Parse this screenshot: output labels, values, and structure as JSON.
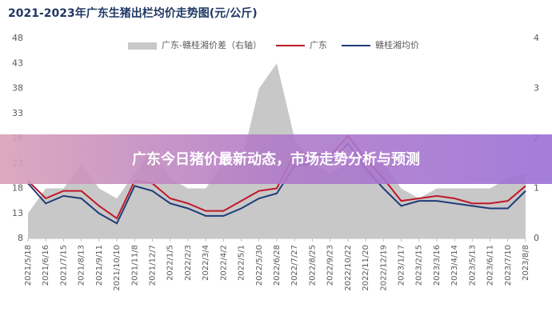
{
  "chart_data": {
    "type": "line",
    "title": "2021-2023年广东生猪出栏均价走势图(元/公斤)",
    "categories": [
      "2021/5/18",
      "2021/6/16",
      "2021/7/15",
      "2021/8/13",
      "2021/9/11",
      "2021/10/10",
      "2021/11/8",
      "2021/12/7",
      "2022/1/5",
      "2022/2/3",
      "2022/3/4",
      "2022/4/2",
      "2022/5/1",
      "2022/5/30",
      "2022/6/28",
      "2022/7/27",
      "2022/8/25",
      "2022/9/23",
      "2022/10/22",
      "2022/11/20",
      "2022/12/19",
      "2023/1/17",
      "2023/2/15",
      "2023/3/16",
      "2023/4/14",
      "2023/5/13",
      "2023/6/11",
      "2023/7/10",
      "2023/8/8"
    ],
    "series": [
      {
        "name": "广东-赣桂湘价差（右轴）",
        "color": "#c8c8c8",
        "type": "area",
        "axis": "y2",
        "values": [
          0.5,
          1,
          1,
          1.5,
          1,
          0.8,
          1.3,
          1.8,
          1.2,
          1,
          1,
          1.5,
          1.5,
          3,
          3.5,
          2,
          1.5,
          1.3,
          1.5,
          1.5,
          1.5,
          1,
          0.8,
          1,
          1,
          1,
          1,
          1.2,
          1.3
        ]
      },
      {
        "name": "广东",
        "color": "#c0182a",
        "values": [
          19.5,
          16,
          17.5,
          17.5,
          14.5,
          12,
          19.5,
          19,
          16,
          15,
          13.5,
          13.5,
          15.5,
          17.5,
          18,
          25,
          25,
          24.5,
          28.5,
          24,
          20,
          15.5,
          16,
          16.5,
          16,
          15,
          15,
          15.5,
          18.5
        ]
      },
      {
        "name": "赣桂湘均价",
        "color": "#1f3c78",
        "values": [
          19,
          15,
          16.5,
          16,
          13,
          11,
          18.5,
          17.5,
          15,
          14,
          12.5,
          12.5,
          14,
          16,
          17,
          22.5,
          23,
          23,
          27,
          22,
          18,
          14.5,
          15.5,
          15.5,
          15,
          14.5,
          14,
          14,
          17.5
        ]
      }
    ],
    "ylim": [
      8,
      48
    ],
    "yticks": [
      8,
      13,
      18,
      23,
      28,
      33,
      38,
      43,
      48
    ],
    "y2lim": [
      0,
      4
    ],
    "y2ticks": [
      0,
      1,
      2,
      3,
      4
    ],
    "grid": false
  },
  "banner": "广东今日猪价最新动态，市场走势分析与预测"
}
